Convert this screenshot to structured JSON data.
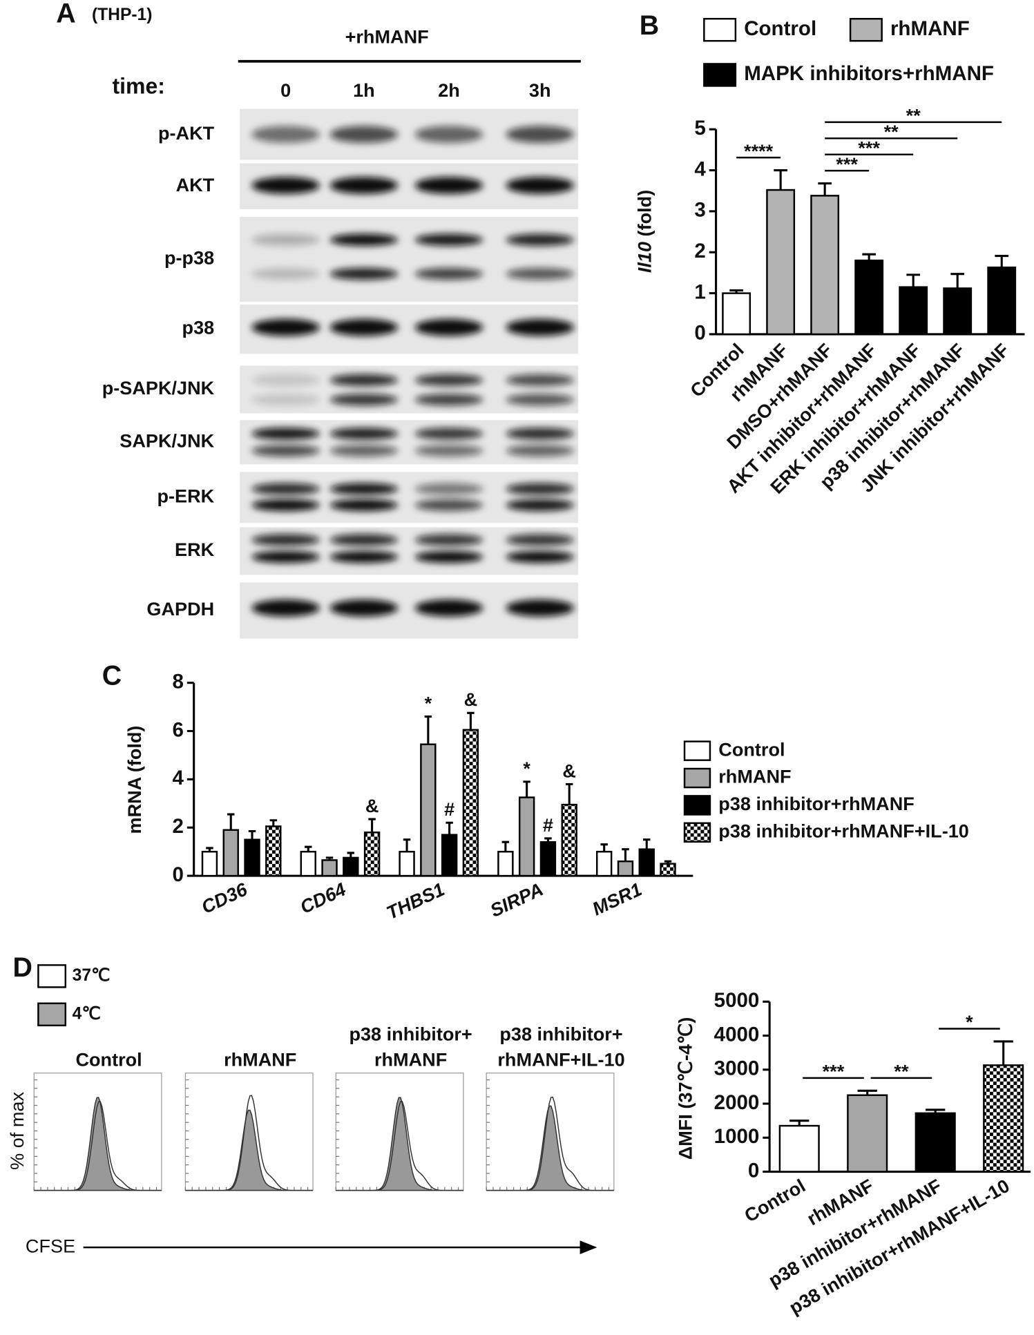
{
  "blot": {
    "panel": "A",
    "cell_line": "(THP-1)",
    "treatment": "+rhMANF",
    "time_label": "time:",
    "times": [
      "0",
      "1h",
      "2h",
      "3h"
    ],
    "proteins": [
      "p-AKT",
      "AKT",
      "p-p38",
      "p38",
      "p-SAPK/JNK",
      "SAPK/JNK",
      "p-ERK",
      "ERK",
      "GAPDH"
    ]
  },
  "chart_data": [
    {
      "type": "bar",
      "panel": "B",
      "ylabel": [
        "Il10",
        "(fold)"
      ],
      "legend": [
        {
          "name": "Control",
          "color": "#ffffff"
        },
        {
          "name": "rhMANF",
          "color": "#b3b3b3"
        },
        {
          "name": "MAPK inhibitors+rhMANF",
          "color": "#000000"
        }
      ],
      "categories": [
        "Control",
        "rhMANF",
        "DMSO+rhMANF",
        "AKT inhibitor+rhMANF",
        "ERK inhibitor+rhMANF",
        "p38 inhibitor+rhMANF",
        "JNK inhibitor+rhMANF"
      ],
      "values": [
        1.0,
        3.52,
        3.38,
        1.8,
        1.15,
        1.12,
        1.63
      ],
      "errors": [
        0.07,
        0.48,
        0.3,
        0.15,
        0.3,
        0.35,
        0.28
      ],
      "colors": [
        "#ffffff",
        "#b3b3b3",
        "#b3b3b3",
        "#000000",
        "#000000",
        "#000000",
        "#000000"
      ],
      "ylim": [
        0,
        5
      ],
      "yticks": [
        0,
        1,
        2,
        3,
        4,
        5
      ],
      "significance": [
        {
          "from": 0,
          "to": 1,
          "label": "****"
        },
        {
          "from": 2,
          "to": 3,
          "label": "***"
        },
        {
          "from": 2,
          "to": 4,
          "label": "***"
        },
        {
          "from": 2,
          "to": 5,
          "label": "**"
        },
        {
          "from": 2,
          "to": 6,
          "label": "**"
        }
      ]
    },
    {
      "type": "grouped_bar",
      "panel": "C",
      "ylabel": [
        "mRNA (fold)"
      ],
      "category_style": "italic",
      "categories": [
        "CD36",
        "CD64",
        "THBS1",
        "SIRPA",
        "MSR1"
      ],
      "series": [
        {
          "name": "Control",
          "color": "#ffffff",
          "values": [
            1.0,
            1.0,
            1.0,
            1.0,
            1.0
          ],
          "errors": [
            0.15,
            0.2,
            0.5,
            0.4,
            0.3
          ]
        },
        {
          "name": "rhMANF",
          "color": "#a6a6a6",
          "values": [
            1.9,
            0.65,
            5.45,
            3.25,
            0.6
          ],
          "errors": [
            0.65,
            0.1,
            1.15,
            0.65,
            0.5
          ]
        },
        {
          "name": "p38 inhibitor+rhMANF",
          "color": "#000000",
          "values": [
            1.5,
            0.75,
            1.7,
            1.4,
            1.1
          ],
          "errors": [
            0.35,
            0.2,
            0.5,
            0.15,
            0.4
          ]
        },
        {
          "name": "p38 inhibitor+rhMANF+IL-10",
          "color": "checker",
          "values": [
            2.05,
            1.8,
            6.05,
            2.95,
            0.5
          ],
          "errors": [
            0.25,
            0.55,
            0.7,
            0.85,
            0.1
          ]
        }
      ],
      "ylim": [
        0,
        8
      ],
      "yticks": [
        0,
        2,
        4,
        6,
        8
      ],
      "annotations": [
        {
          "category": 1,
          "series": 3,
          "label": "&"
        },
        {
          "category": 2,
          "series": 1,
          "label": "*"
        },
        {
          "category": 2,
          "series": 2,
          "label": "#"
        },
        {
          "category": 2,
          "series": 3,
          "label": "&"
        },
        {
          "category": 3,
          "series": 1,
          "label": "*"
        },
        {
          "category": 3,
          "series": 2,
          "label": "#"
        },
        {
          "category": 3,
          "series": 3,
          "label": "&"
        }
      ]
    },
    {
      "type": "bar",
      "panel": "D",
      "ylabel": [
        "ΔMFI (37℃-4℃)"
      ],
      "categories": [
        "Control",
        "rhMANF",
        "p38 inhibitor+rhMANF",
        "p38 inhibitor+rhMANF+IL-10"
      ],
      "values": [
        1350,
        2250,
        1720,
        3130
      ],
      "errors": [
        150,
        130,
        100,
        700
      ],
      "colors": [
        "#ffffff",
        "#a6a6a6",
        "#000000",
        "checker"
      ],
      "ylim": [
        0,
        5000
      ],
      "yticks": [
        0,
        1000,
        2000,
        3000,
        4000,
        5000
      ],
      "significance": [
        {
          "from": 0,
          "to": 1,
          "label": "***"
        },
        {
          "from": 1,
          "to": 2,
          "label": "**"
        },
        {
          "from": 2,
          "to": 3,
          "label": "*"
        }
      ]
    }
  ],
  "flow": {
    "legend": [
      {
        "name": "37℃",
        "color": "#ffffff"
      },
      {
        "name": "4℃",
        "color": "#a6a6a6"
      }
    ],
    "groups": [
      [
        "Control"
      ],
      [
        "rhMANF"
      ],
      [
        "p38 inhibitor+",
        "rhMANF"
      ],
      [
        "p38 inhibitor+",
        "rhMANF+IL-10"
      ]
    ],
    "ylabel": "% of max",
    "xlabel": "CFSE"
  }
}
